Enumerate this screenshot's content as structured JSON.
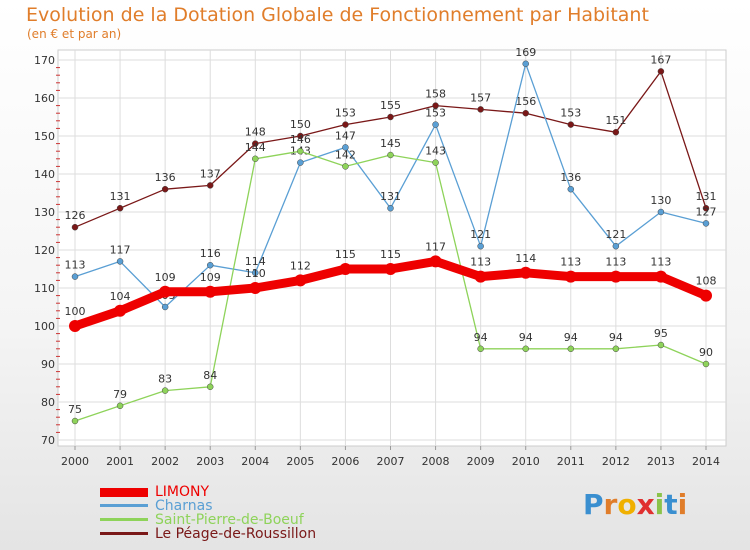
{
  "header": {
    "title": "Evolution de la Dotation Globale de Fonctionnement par Habitant",
    "subtitle": "(en € et par an)"
  },
  "logo": {
    "letters": [
      "P",
      "r",
      "o",
      "x",
      "i",
      "t",
      "i"
    ],
    "colors": [
      "#3a8fd0",
      "#e07d2a",
      "#f0b000",
      "#e03030",
      "#8bc34a",
      "#3a8fd0",
      "#e07d2a"
    ]
  },
  "chart_data": {
    "type": "line",
    "title": "Evolution de la Dotation Globale de Fonctionnement par Habitant",
    "subtitle": "(en € et par an)",
    "xlabel": "",
    "ylabel": "",
    "x": [
      2000,
      2001,
      2002,
      2003,
      2004,
      2005,
      2006,
      2007,
      2008,
      2009,
      2010,
      2011,
      2012,
      2013,
      2014
    ],
    "x_tick_labels": [
      "2000",
      "2001",
      "2002",
      "2003",
      "2004",
      "2005",
      "2006",
      "2007",
      "2008",
      "2009",
      "2010",
      "2011",
      "2012",
      "2013",
      "2014"
    ],
    "ylim": [
      70,
      170
    ],
    "y_ticks": [
      70,
      80,
      90,
      100,
      110,
      120,
      130,
      140,
      150,
      160,
      170
    ],
    "y_tick_labels": [
      "70",
      "80",
      "90",
      "100",
      "110",
      "120",
      "130",
      "140",
      "150",
      "160",
      "170"
    ],
    "grid": true,
    "legend_position": "bottom-left",
    "series": [
      {
        "name": "Le Péage-de-Roussillon",
        "color": "#7a1818",
        "values": [
          126,
          131,
          136,
          137,
          148,
          150,
          153,
          155,
          158,
          157,
          156,
          153,
          151,
          167,
          131
        ]
      },
      {
        "name": "Charnas",
        "color": "#5a9fd4",
        "values": [
          113,
          117,
          105,
          116,
          114,
          143,
          147,
          131,
          153,
          121,
          169,
          136,
          121,
          130,
          127
        ]
      },
      {
        "name": "Saint-Pierre-de-Boeuf",
        "color": "#8ed35a",
        "values": [
          75,
          79,
          83,
          84,
          144,
          146,
          142,
          145,
          143,
          94,
          94,
          94,
          94,
          95,
          90
        ]
      },
      {
        "name": "LIMONY",
        "color": "#ee0000",
        "values": [
          100,
          104,
          109,
          109,
          110,
          112,
          115,
          115,
          117,
          113,
          114,
          113,
          113,
          113,
          108
        ]
      }
    ],
    "legend": [
      {
        "name": "LIMONY",
        "color": "#ee0000"
      },
      {
        "name": "Charnas",
        "color": "#5a9fd4"
      },
      {
        "name": "Saint-Pierre-de-Boeuf",
        "color": "#8ed35a"
      },
      {
        "name": "Le Péage-de-Roussillon",
        "color": "#7a1818"
      }
    ]
  }
}
